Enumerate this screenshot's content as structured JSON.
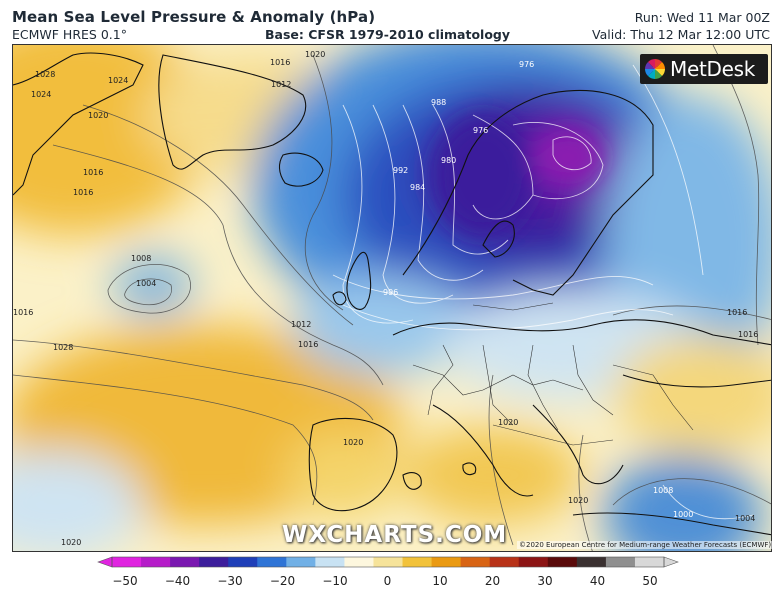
{
  "header": {
    "title": "Mean Sea Level Pressure & Anomaly (hPa)",
    "model": "ECMWF HRES 0.1°",
    "base": "Base: CFSR 1979-2010 climatology",
    "run": "Run: Wed 11 Mar 00Z",
    "valid": "Valid: Thu 12 Mar 12:00 UTC"
  },
  "logo": {
    "text": "MetDesk"
  },
  "watermark": "WXCHARTS.COM",
  "copyright": "©2020 European Centre for Medium-range Weather Forecasts (ECMWF)",
  "isobar_labels": [
    "1028",
    "1024",
    "1020",
    "1016",
    "1016",
    "1012",
    "1008",
    "1004",
    "1016",
    "1020",
    "1016",
    "1016",
    "1012",
    "1016",
    "1020",
    "1020",
    "1024",
    "1028",
    "992",
    "988",
    "984",
    "980",
    "976",
    "976",
    "996",
    "1016",
    "1008",
    "1000",
    "1004",
    "1020",
    "1020"
  ],
  "colorbar": {
    "ticks": [
      "−50",
      "−40",
      "−30",
      "−20",
      "−10",
      "0",
      "10",
      "20",
      "30",
      "40",
      "50"
    ],
    "colors": [
      "#e024e0",
      "#b61cc9",
      "#7a18b0",
      "#3d1e9c",
      "#1f3fb8",
      "#2f74d6",
      "#71b0e6",
      "#c8e2f3",
      "#fdf7de",
      "#f6e39a",
      "#f2c23a",
      "#ea9a12",
      "#d86414",
      "#b83218",
      "#8c1414",
      "#5a0a0a",
      "#3a3030",
      "#8f8f8f",
      "#d8d8d8"
    ]
  }
}
